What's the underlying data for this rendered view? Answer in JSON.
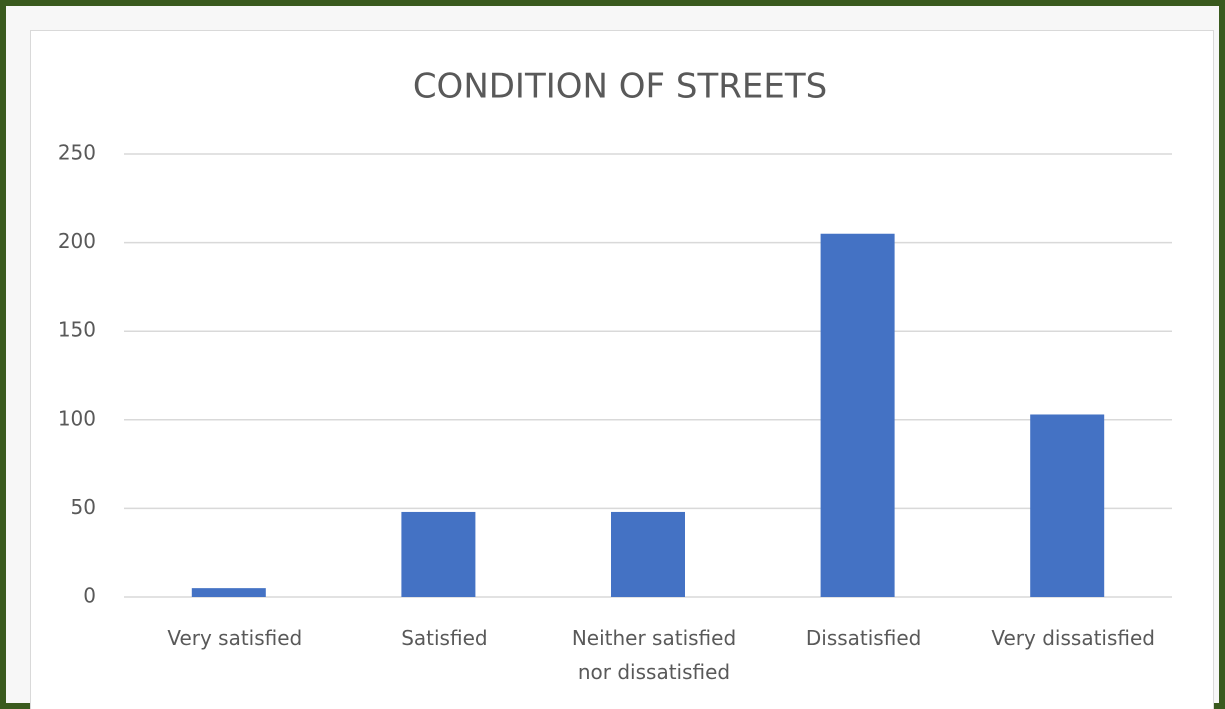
{
  "chart_data": {
    "type": "bar",
    "title": "CONDITION OF STREETS",
    "categories": [
      "Very satisfied",
      "Satisfied",
      "Neither satisfied nor dissatisfied",
      "Dissatisfied",
      "Very dissatisfied"
    ],
    "values": [
      5,
      48,
      48,
      205,
      103
    ],
    "color": "#4472c4",
    "ylim": [
      0,
      250
    ],
    "yticks": [
      0,
      50,
      100,
      150,
      200,
      250
    ],
    "grid": true
  }
}
